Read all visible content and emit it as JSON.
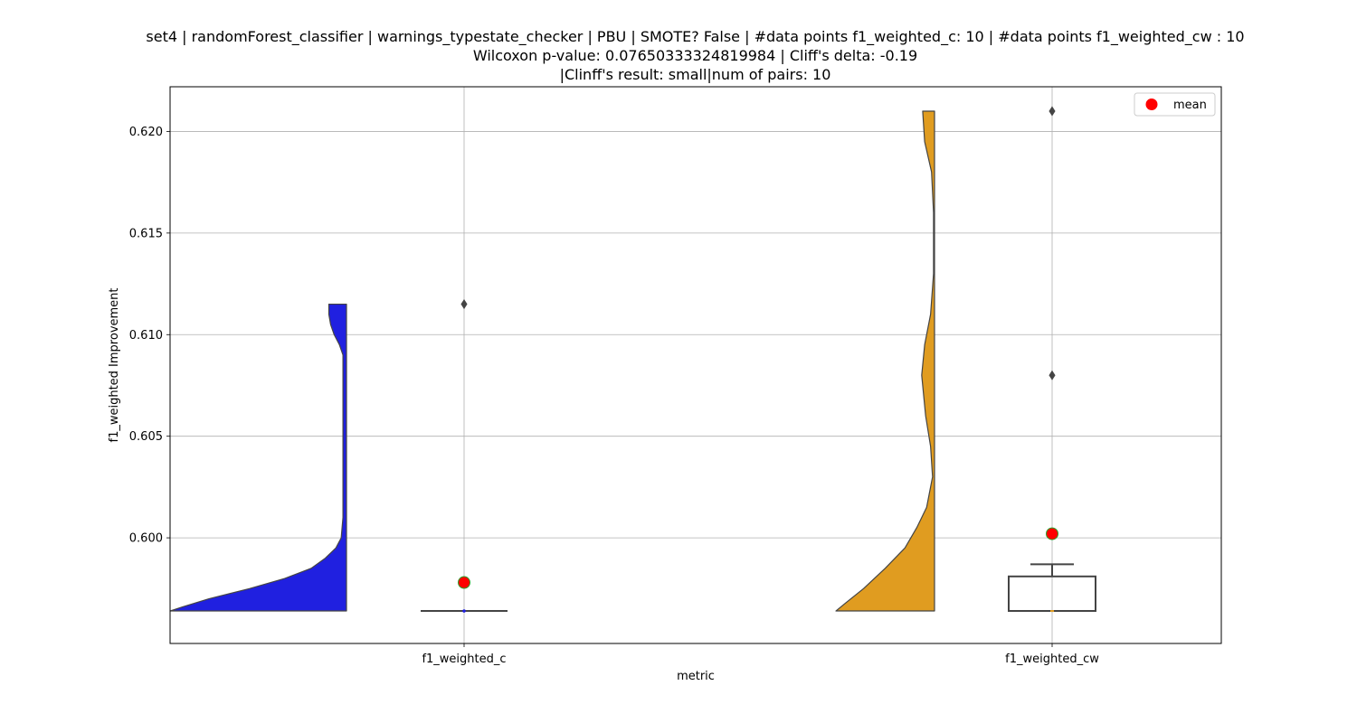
{
  "title": {
    "line1": "set4 | randomForest_classifier | warnings_typestate_checker | PBU | SMOTE? False | #data points f1_weighted_c: 10 | #data points f1_weighted_cw : 10",
    "line2": "Wilcoxon p-value: 0.07650333324819984 | Cliff's delta: -0.19",
    "line3": "|Clinff's result: small|num of pairs: 10"
  },
  "chart_data": {
    "type": "violin+box",
    "xlabel": "metric",
    "ylabel": "f1_weighted Improvement",
    "categories": [
      "f1_weighted_c",
      "f1_weighted_cw"
    ],
    "ylim": [
      0.5948,
      0.6222
    ],
    "yticks": [
      0.6,
      0.605,
      0.61,
      0.615,
      0.62
    ],
    "ytick_labels": [
      "0.600",
      "0.605",
      "0.610",
      "0.615",
      "0.620"
    ],
    "grid": true,
    "legend": {
      "position": "top-right",
      "entries": [
        {
          "label": "mean",
          "marker": "red-circle"
        }
      ]
    },
    "colors": {
      "f1_weighted_c": "#2020e0",
      "f1_weighted_cw": "#e09c20",
      "mean": "#ff0000",
      "mean_edge": "#2ca02c"
    },
    "series": [
      {
        "category": "f1_weighted_c",
        "box": {
          "min": 0.5964,
          "q1": 0.5964,
          "median": 0.5964,
          "q3": 0.5964,
          "max": 0.5964
        },
        "outliers": [
          0.6115
        ],
        "mean": 0.5978,
        "violin_range": [
          0.5964,
          0.6115
        ],
        "violin_density": [
          [
            0.5964,
            1.0
          ],
          [
            0.5966,
            0.93
          ],
          [
            0.597,
            0.78
          ],
          [
            0.5975,
            0.55
          ],
          [
            0.598,
            0.35
          ],
          [
            0.5985,
            0.2
          ],
          [
            0.599,
            0.12
          ],
          [
            0.5995,
            0.06
          ],
          [
            0.6,
            0.03
          ],
          [
            0.601,
            0.02
          ],
          [
            0.605,
            0.02
          ],
          [
            0.609,
            0.02
          ],
          [
            0.6095,
            0.04
          ],
          [
            0.61,
            0.07
          ],
          [
            0.6105,
            0.09
          ],
          [
            0.611,
            0.1
          ],
          [
            0.6115,
            0.1
          ]
        ]
      },
      {
        "category": "f1_weighted_cw",
        "box": {
          "min": 0.5964,
          "q1": 0.5964,
          "median": 0.5964,
          "q3": 0.5981,
          "max": 0.5987
        },
        "outliers": [
          0.608,
          0.621
        ],
        "mean": 0.6002,
        "violin_range": [
          0.5964,
          0.621
        ],
        "violin_density": [
          [
            0.5964,
            1.0
          ],
          [
            0.5968,
            0.9
          ],
          [
            0.5975,
            0.72
          ],
          [
            0.5985,
            0.5
          ],
          [
            0.5995,
            0.3
          ],
          [
            0.6005,
            0.18
          ],
          [
            0.6015,
            0.08
          ],
          [
            0.603,
            0.02
          ],
          [
            0.6045,
            0.04
          ],
          [
            0.606,
            0.09
          ],
          [
            0.608,
            0.13
          ],
          [
            0.6095,
            0.1
          ],
          [
            0.611,
            0.04
          ],
          [
            0.613,
            0.01
          ],
          [
            0.616,
            0.01
          ],
          [
            0.618,
            0.03
          ],
          [
            0.6195,
            0.1
          ],
          [
            0.621,
            0.12
          ]
        ]
      }
    ]
  }
}
